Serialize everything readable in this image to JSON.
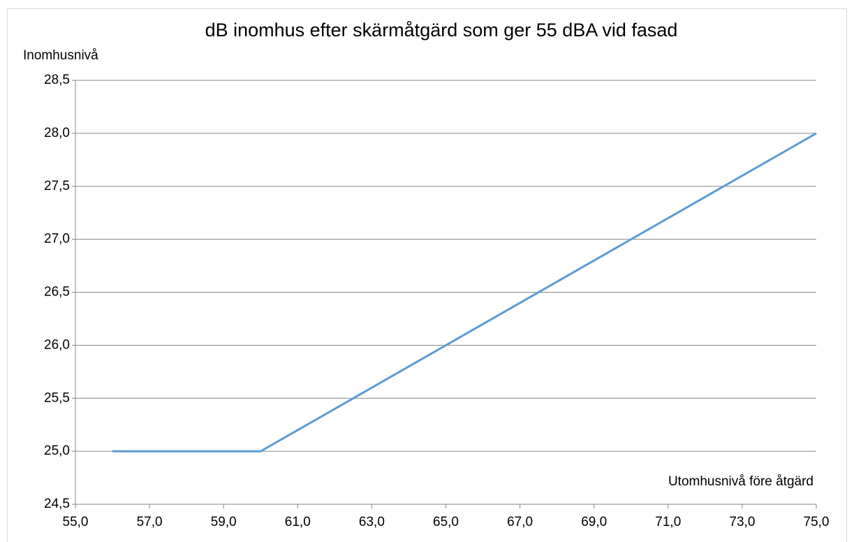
{
  "chart_data": {
    "type": "line",
    "title": "dB inomhus efter skärmåtgärd som ger 55 dBA vid fasad",
    "y_label": "Inomhusnivå",
    "x_label": "Utomhusnivå före åtgärd",
    "x": [
      56,
      60,
      75
    ],
    "values": [
      25,
      25,
      28
    ],
    "color": "#5b9bd5",
    "xlim": [
      55,
      75
    ],
    "xticks": [
      {
        "value": 55,
        "label": "55,0"
      },
      {
        "value": 57,
        "label": "57,0"
      },
      {
        "value": 59,
        "label": "59,0"
      },
      {
        "value": 61,
        "label": "61,0"
      },
      {
        "value": 63,
        "label": "63,0"
      },
      {
        "value": 65,
        "label": "65,0"
      },
      {
        "value": 67,
        "label": "67,0"
      },
      {
        "value": 69,
        "label": "69,0"
      },
      {
        "value": 71,
        "label": "71,0"
      },
      {
        "value": 73,
        "label": "73,0"
      },
      {
        "value": 75,
        "label": "75,0"
      }
    ],
    "ylim": [
      24.5,
      28.5
    ],
    "yticks": [
      {
        "value": 24.5,
        "label": "24,5"
      },
      {
        "value": 25,
        "label": "25,0"
      },
      {
        "value": 25.5,
        "label": "25,5"
      },
      {
        "value": 26,
        "label": "26,0"
      },
      {
        "value": 26.5,
        "label": "26,5"
      },
      {
        "value": 27,
        "label": "27,0"
      },
      {
        "value": 27.5,
        "label": "27,5"
      },
      {
        "value": 28,
        "label": "28,0"
      },
      {
        "value": 28.5,
        "label": "28,5"
      }
    ],
    "grid": true
  }
}
